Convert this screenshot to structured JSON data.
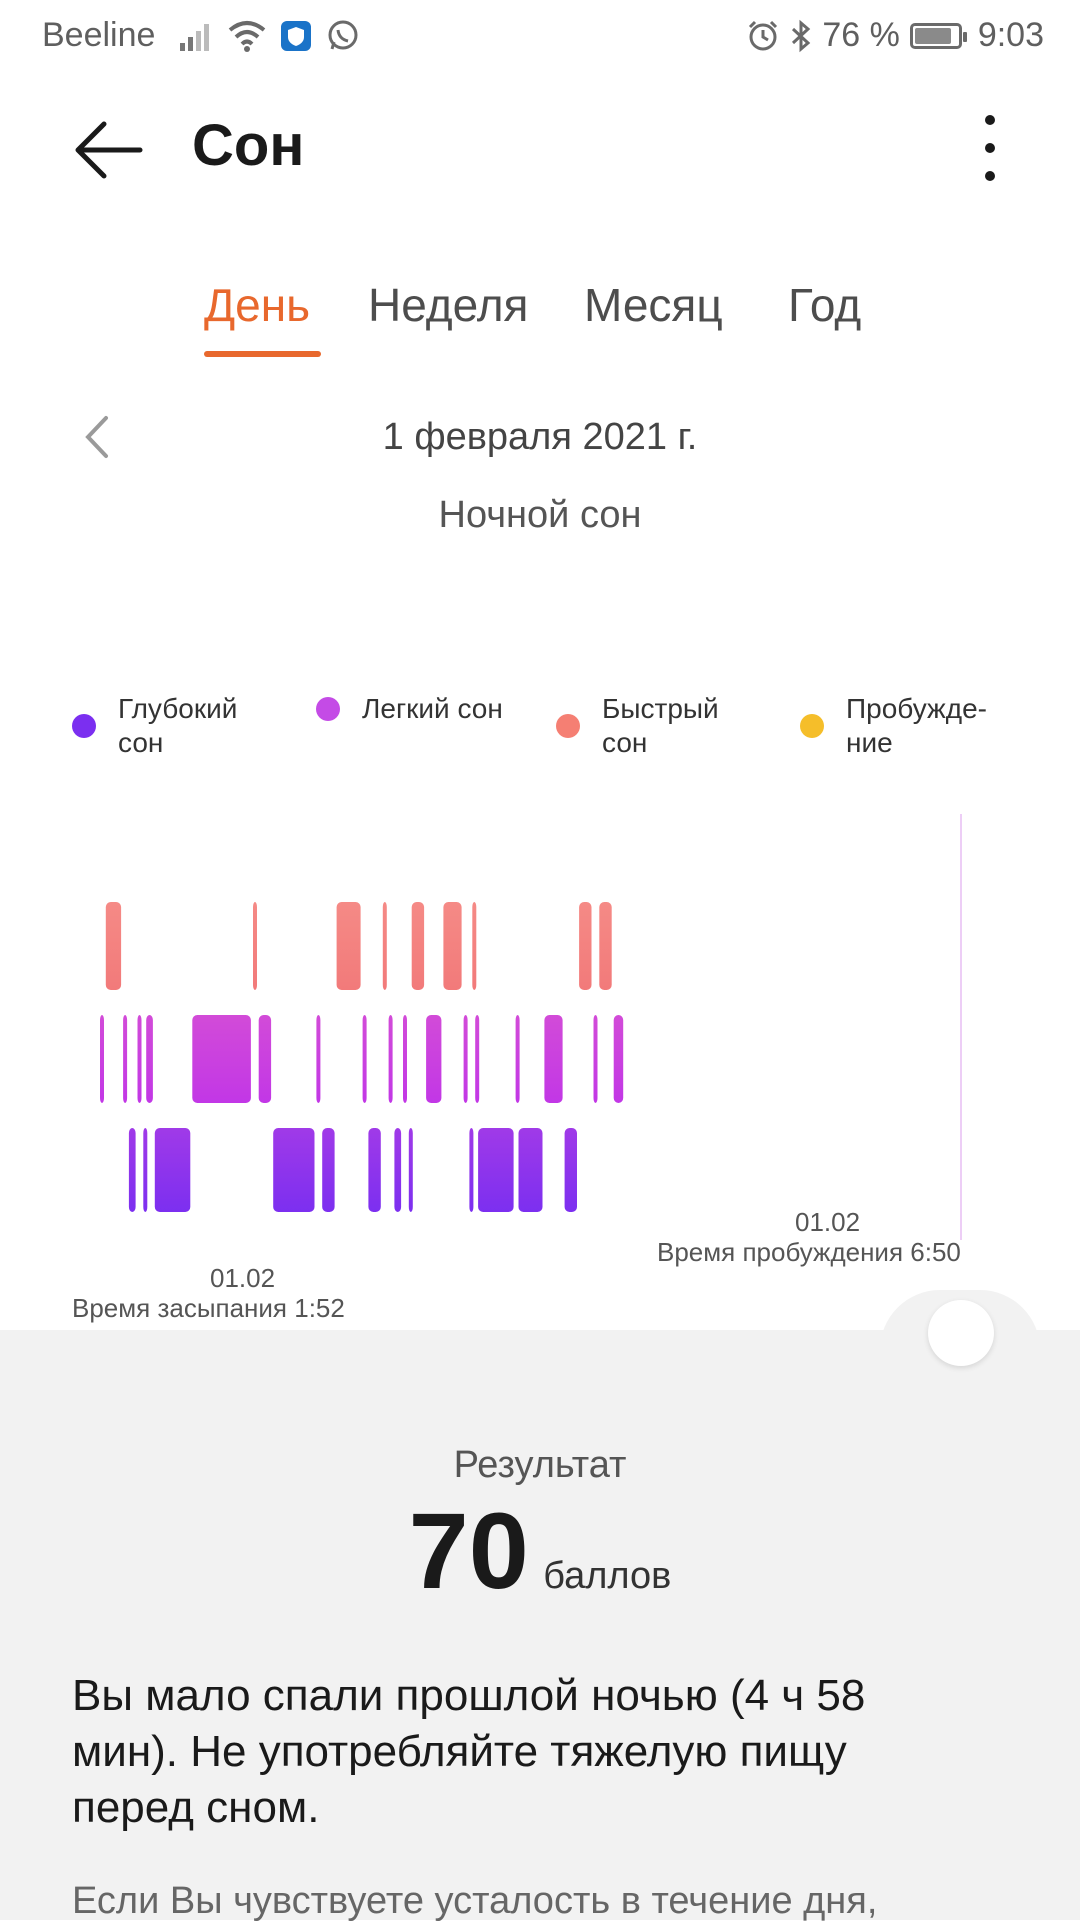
{
  "status_bar": {
    "carrier": "Beeline",
    "battery": "76 %",
    "time": "9:03",
    "icons": [
      "signal-icon",
      "wifi-icon",
      "shield-icon",
      "whatsapp-icon",
      "alarm-icon",
      "bluetooth-icon",
      "battery-icon"
    ]
  },
  "header": {
    "title": "Сон",
    "back_icon": "arrow-left-icon",
    "menu_icon": "more-vertical-icon"
  },
  "tabs": [
    {
      "label": "День",
      "active": true
    },
    {
      "label": "Неделя",
      "active": false
    },
    {
      "label": "Месяц",
      "active": false
    },
    {
      "label": "Год",
      "active": false
    }
  ],
  "date": {
    "label": "1 февраля 2021 г.",
    "prev_icon": "chevron-left-icon",
    "sleep_type": "Ночной сон"
  },
  "colors": {
    "accent": "#e8682d",
    "deep": "#7b2ff0",
    "light": "#c44be6",
    "rem": "#f57f73",
    "awake": "#f5be2a"
  },
  "legend": [
    {
      "label": "Глубокий сон",
      "color": "#7b2ff0"
    },
    {
      "label": "Легкий сон",
      "color": "#c44be6"
    },
    {
      "label": "Быстрый сон",
      "color": "#f57f73"
    },
    {
      "label": "Пробужде-ние",
      "color": "#f5be2a"
    }
  ],
  "chart": {
    "start_date": "01.02",
    "start_text": "Время засыпания 1:52",
    "end_date": "01.02",
    "end_text": "Время пробуждения 6:50"
  },
  "chart_data": {
    "type": "bar",
    "x_unit": "time",
    "start_time": "1:52",
    "end_time": "6:50",
    "stage_levels": [
      "Быстрый сон",
      "Легкий сон",
      "Глубокий сон"
    ],
    "segments": [
      {
        "stage": "light",
        "start": "1:52",
        "end": "1:54"
      },
      {
        "stage": "rem",
        "start": "1:54",
        "end": "2:00"
      },
      {
        "stage": "light",
        "start": "2:00",
        "end": "2:02"
      },
      {
        "stage": "deep",
        "start": "2:02",
        "end": "2:05"
      },
      {
        "stage": "light",
        "start": "2:05",
        "end": "2:07"
      },
      {
        "stage": "deep",
        "start": "2:07",
        "end": "2:08"
      },
      {
        "stage": "light",
        "start": "2:08",
        "end": "2:11"
      },
      {
        "stage": "deep",
        "start": "2:11",
        "end": "2:24"
      },
      {
        "stage": "light",
        "start": "2:24",
        "end": "2:45"
      },
      {
        "stage": "rem",
        "start": "2:45",
        "end": "2:47"
      },
      {
        "stage": "light",
        "start": "2:47",
        "end": "2:52"
      },
      {
        "stage": "deep",
        "start": "2:52",
        "end": "3:07"
      },
      {
        "stage": "light",
        "start": "3:07",
        "end": "3:09"
      },
      {
        "stage": "deep",
        "start": "3:09",
        "end": "3:14"
      },
      {
        "stage": "rem",
        "start": "3:14",
        "end": "3:23"
      },
      {
        "stage": "light",
        "start": "3:23",
        "end": "3:25"
      },
      {
        "stage": "deep",
        "start": "3:25",
        "end": "3:30"
      },
      {
        "stage": "rem",
        "start": "3:30",
        "end": "3:32"
      },
      {
        "stage": "light",
        "start": "3:32",
        "end": "3:34"
      },
      {
        "stage": "deep",
        "start": "3:34",
        "end": "3:37"
      },
      {
        "stage": "light",
        "start": "3:37",
        "end": "3:39"
      },
      {
        "stage": "deep",
        "start": "3:39",
        "end": "3:40"
      },
      {
        "stage": "rem",
        "start": "3:40",
        "end": "3:45"
      },
      {
        "stage": "light",
        "start": "3:45",
        "end": "3:51"
      },
      {
        "stage": "rem",
        "start": "3:51",
        "end": "3:58"
      },
      {
        "stage": "light",
        "start": "3:58",
        "end": "4:00"
      },
      {
        "stage": "deep",
        "start": "4:00",
        "end": "4:01"
      },
      {
        "stage": "rem",
        "start": "4:01",
        "end": "4:02"
      },
      {
        "stage": "light",
        "start": "4:02",
        "end": "4:03"
      },
      {
        "stage": "deep",
        "start": "4:03",
        "end": "4:16"
      },
      {
        "stage": "light",
        "start": "4:16",
        "end": "4:17"
      },
      {
        "stage": "deep",
        "start": "4:17",
        "end": "4:26"
      },
      {
        "stage": "light",
        "start": "4:26",
        "end": "4:33"
      },
      {
        "stage": "deep",
        "start": "4:33",
        "end": "4:38"
      },
      {
        "stage": "rem",
        "start": "4:38",
        "end": "4:43"
      },
      {
        "stage": "light",
        "start": "4:43",
        "end": "4:45"
      },
      {
        "stage": "rem",
        "start": "4:45",
        "end": "4:50"
      },
      {
        "stage": "light",
        "start": "4:50",
        "end": "4:54"
      }
    ]
  },
  "result": {
    "label": "Результат",
    "score": "70",
    "unit": "баллов"
  },
  "advice": {
    "main": "Вы мало спали прошлой ночью (4 ч 58 мин). Не употребляйте тяжелую пищу перед сном.",
    "secondary": "Если Вы чувствуете усталость в течение дня,"
  }
}
